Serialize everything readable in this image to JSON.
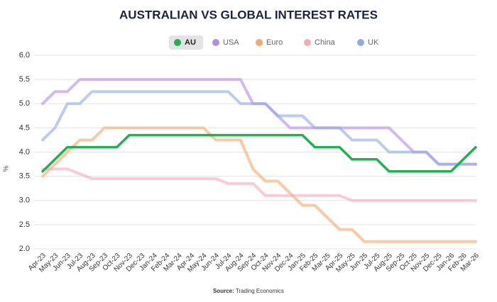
{
  "chart_data": {
    "type": "line",
    "title": "AUSTRALIAN VS GLOBAL INTEREST RATES",
    "y_label": "%",
    "source_label": "Source:",
    "source": "Trading Economics",
    "categories": [
      "Apr-23",
      "May-23",
      "Jun-23",
      "Jul-23",
      "Aug-23",
      "Sep-23",
      "Oct-23",
      "Nov-23",
      "Dec-23",
      "Jan-24",
      "Feb-24",
      "Mar-24",
      "Apr-24",
      "May-24",
      "Jun-24",
      "Jul-24",
      "Aug-24",
      "Sep-24",
      "Oct-24",
      "Nov-24",
      "Dec-24",
      "Jan-25",
      "Feb-25",
      "Mar-25",
      "Apr-25",
      "May-25",
      "Jun-25",
      "Jul-25",
      "Aug-25",
      "Sep-25",
      "Oct-25",
      "Nov-25",
      "Dec-25",
      "Jan-26",
      "Feb-26",
      "Mar-26"
    ],
    "series": [
      {
        "name": "AU",
        "color": "#1fb24f",
        "values": [
          3.6,
          3.85,
          4.1,
          4.1,
          4.1,
          4.1,
          4.1,
          4.35,
          4.35,
          4.35,
          4.35,
          4.35,
          4.35,
          4.35,
          4.35,
          4.35,
          4.35,
          4.35,
          4.35,
          4.35,
          4.35,
          4.35,
          4.1,
          4.1,
          4.1,
          3.85,
          3.85,
          3.85,
          3.6,
          3.6,
          3.6,
          3.6,
          3.6,
          3.6,
          3.85,
          4.1
        ]
      },
      {
        "name": "USA",
        "color": "#b48be8",
        "values": [
          5.0,
          5.25,
          5.25,
          5.5,
          5.5,
          5.5,
          5.5,
          5.5,
          5.5,
          5.5,
          5.5,
          5.5,
          5.5,
          5.5,
          5.5,
          5.5,
          5.5,
          5.0,
          5.0,
          4.75,
          4.5,
          4.5,
          4.5,
          4.5,
          4.5,
          4.5,
          4.5,
          4.5,
          4.5,
          4.25,
          4.0,
          4.0,
          3.75,
          3.75,
          3.75,
          3.75
        ]
      },
      {
        "name": "Euro",
        "color": "#f6a76c",
        "values": [
          3.5,
          3.75,
          4.0,
          4.25,
          4.25,
          4.5,
          4.5,
          4.5,
          4.5,
          4.5,
          4.5,
          4.5,
          4.5,
          4.5,
          4.25,
          4.25,
          4.25,
          3.65,
          3.4,
          3.4,
          3.15,
          2.9,
          2.9,
          2.65,
          2.4,
          2.4,
          2.15,
          2.15,
          2.15,
          2.15,
          2.15,
          2.15,
          2.15,
          2.15,
          2.15,
          2.15
        ]
      },
      {
        "name": "China",
        "color": "#f5aab6",
        "values": [
          3.65,
          3.65,
          3.65,
          3.55,
          3.45,
          3.45,
          3.45,
          3.45,
          3.45,
          3.45,
          3.45,
          3.45,
          3.45,
          3.45,
          3.45,
          3.35,
          3.35,
          3.35,
          3.1,
          3.1,
          3.1,
          3.1,
          3.1,
          3.1,
          3.1,
          3.0,
          3.0,
          3.0,
          3.0,
          3.0,
          3.0,
          3.0,
          3.0,
          3.0,
          3.0,
          3.0
        ]
      },
      {
        "name": "UK",
        "color": "#8fa8ec",
        "values": [
          4.25,
          4.5,
          5.0,
          5.0,
          5.25,
          5.25,
          5.25,
          5.25,
          5.25,
          5.25,
          5.25,
          5.25,
          5.25,
          5.25,
          5.25,
          5.25,
          5.0,
          5.0,
          5.0,
          4.75,
          4.75,
          4.75,
          4.5,
          4.5,
          4.5,
          4.25,
          4.25,
          4.25,
          4.0,
          4.0,
          4.0,
          4.0,
          3.75,
          3.75,
          3.75,
          3.75
        ]
      }
    ],
    "ylim": [
      2,
      6
    ],
    "yticks": [
      {
        "value": 2,
        "label": "2.0"
      },
      {
        "value": 2.5,
        "label": "2.5"
      },
      {
        "value": 3,
        "label": "3.0"
      },
      {
        "value": 3.5,
        "label": "3.5"
      },
      {
        "value": 4,
        "label": "4.0"
      },
      {
        "value": 4.5,
        "label": "4.5"
      },
      {
        "value": 5,
        "label": "5.0"
      },
      {
        "value": 5.5,
        "label": "5.5"
      },
      {
        "value": 6,
        "label": "6.0"
      }
    ],
    "grid": true,
    "highlight": "AU"
  }
}
